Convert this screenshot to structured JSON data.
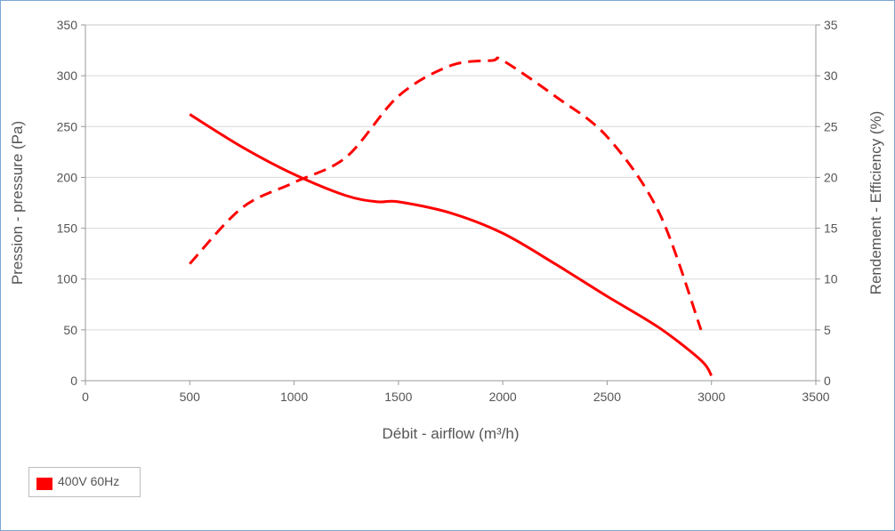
{
  "chart_data": {
    "type": "line",
    "xlabel": "Débit - airflow (m³/h)",
    "ylabel_left": "Pression - pressure (Pa)",
    "ylabel_right": "Rendement - Efficiency (%)",
    "xlim": [
      0,
      3500
    ],
    "ylim_left": [
      0,
      350
    ],
    "ylim_right": [
      0,
      35
    ],
    "xticks": [
      "0",
      "500",
      "1000",
      "1500",
      "2000",
      "2500",
      "3000",
      "3500"
    ],
    "yticks_left": [
      "0",
      "50",
      "100",
      "150",
      "200",
      "250",
      "300",
      "350"
    ],
    "yticks_right": [
      "0",
      "5",
      "10",
      "15",
      "20",
      "25",
      "30",
      "35"
    ],
    "grid": true,
    "legend_position": "bottom-left",
    "series": [
      {
        "name": "400V 60Hz",
        "axis": "left",
        "style": "solid",
        "color": "#ff0000",
        "x": [
          500,
          750,
          1000,
          1250,
          1400,
          1500,
          1750,
          2000,
          2250,
          2500,
          2750,
          2950,
          3000
        ],
        "y": [
          262,
          230,
          203,
          182,
          176,
          176,
          165,
          145,
          115,
          83,
          52,
          20,
          5
        ]
      },
      {
        "name": "400V 60Hz",
        "axis": "right",
        "style": "dashed",
        "color": "#ff0000",
        "x": [
          500,
          750,
          1000,
          1250,
          1500,
          1750,
          1950,
          2000,
          2250,
          2500,
          2750,
          2950
        ],
        "y": [
          11.5,
          17,
          19.5,
          22,
          28,
          31,
          31.5,
          31.5,
          28,
          24,
          16.5,
          5
        ]
      }
    ]
  },
  "legend": {
    "label": "400V 60Hz",
    "color": "#ff0000"
  }
}
